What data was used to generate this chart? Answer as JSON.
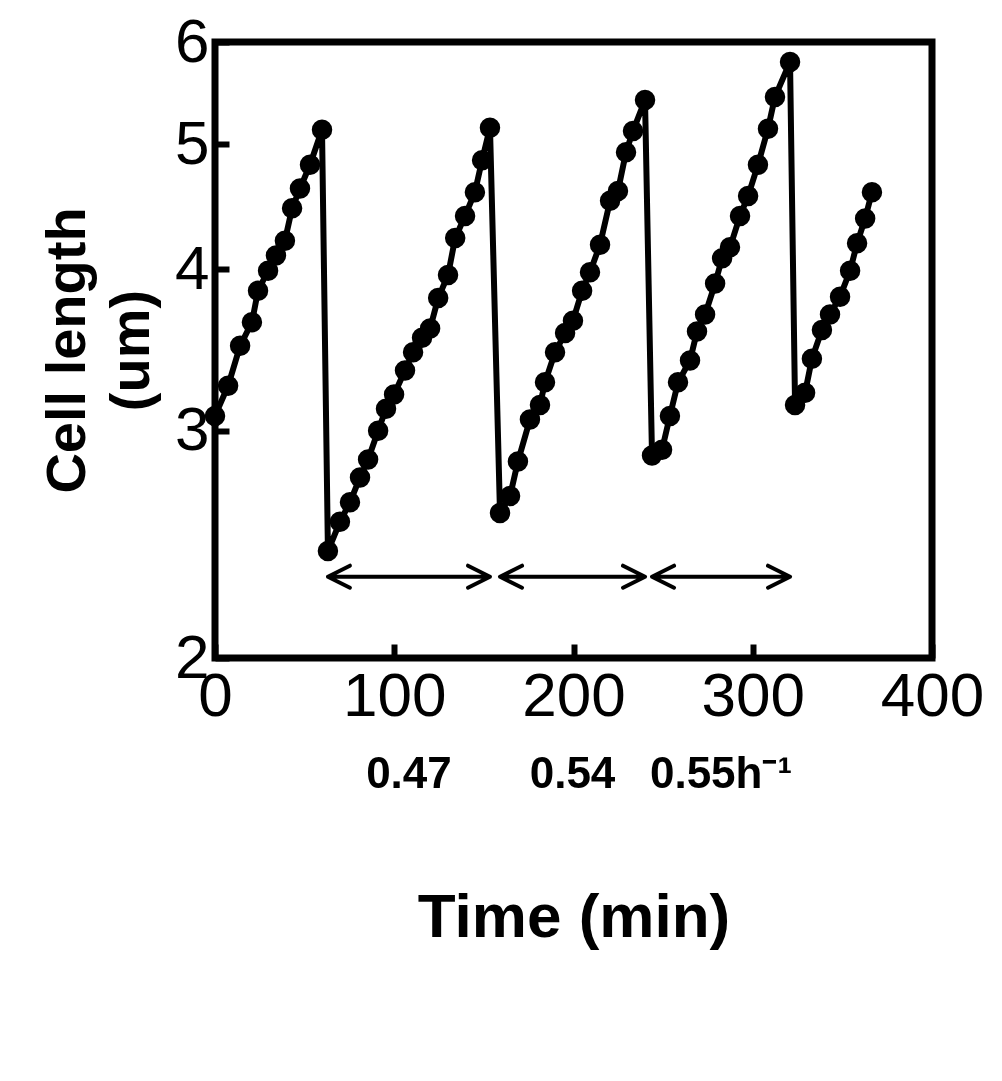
{
  "chart_data": {
    "type": "line",
    "xlabel": "Time (min)",
    "ylabel": "Cell length (um)",
    "x": [
      0,
      7.3,
      14,
      20.6,
      24,
      29.6,
      34,
      39,
      43,
      47.4,
      53,
      59.7,
      63,
      69.7,
      75.3,
      80.9,
      85.4,
      91,
      95.4,
      99.9,
      106,
      110.5,
      115.5,
      120,
      124.5,
      130,
      134,
      139.5,
      145,
      149,
      153.4,
      159,
      164.6,
      169,
      175.7,
      181.3,
      184.1,
      189.7,
      195.3,
      199.7,
      204.8,
      209.2,
      214.8,
      220.4,
      224.8,
      229.3,
      233.2,
      239.9,
      243.8,
      249.4,
      253.8,
      258.3,
      265,
      268.9,
      273.4,
      279,
      282.9,
      287.3,
      292.9,
      297.4,
      302.9,
      308.5,
      312.4,
      320.8,
      323.6,
      329.2,
      333,
      338.6,
      343.1,
      348.7,
      354.3,
      358.2,
      362.7,
      366.5
    ],
    "series": [
      {
        "color": "#000000",
        "values": [
          3.08,
          3.25,
          3.49,
          3.64,
          3.85,
          3.99,
          4.1,
          4.21,
          4.46,
          4.62,
          4.82,
          5.13,
          2.42,
          2.55,
          2.64,
          2.76,
          2.85,
          3.0,
          3.12,
          3.2,
          3.34,
          3.45,
          3.54,
          3.6,
          3.8,
          3.96,
          4.23,
          4.4,
          4.59,
          4.86,
          5.15,
          2.59,
          2.67,
          2.84,
          3.06,
          3.14,
          3.27,
          3.45,
          3.57,
          3.65,
          3.85,
          3.98,
          4.18,
          4.52,
          4.6,
          4.93,
          5.12,
          5.41,
          2.87,
          2.9,
          3.08,
          3.27,
          3.4,
          3.58,
          3.69,
          3.9,
          4.08,
          4.16,
          4.4,
          4.56,
          4.82,
          5.14,
          5.44,
          5.79,
          3.14,
          3.21,
          3.41,
          3.59,
          3.69,
          3.81,
          3.99,
          4.19,
          4.38,
          4.59
        ]
      }
    ],
    "xlim": [
      0,
      400
    ],
    "xticks": [
      0,
      100,
      200,
      300,
      400
    ],
    "ylim": [
      2,
      6
    ],
    "yticks": [
      2,
      3,
      4,
      5,
      6
    ],
    "log": "y",
    "grid": false,
    "marker": "circle",
    "line_style": "solid",
    "annotations": [
      "0.47",
      "0.54",
      "0.55h⁻¹"
    ]
  }
}
